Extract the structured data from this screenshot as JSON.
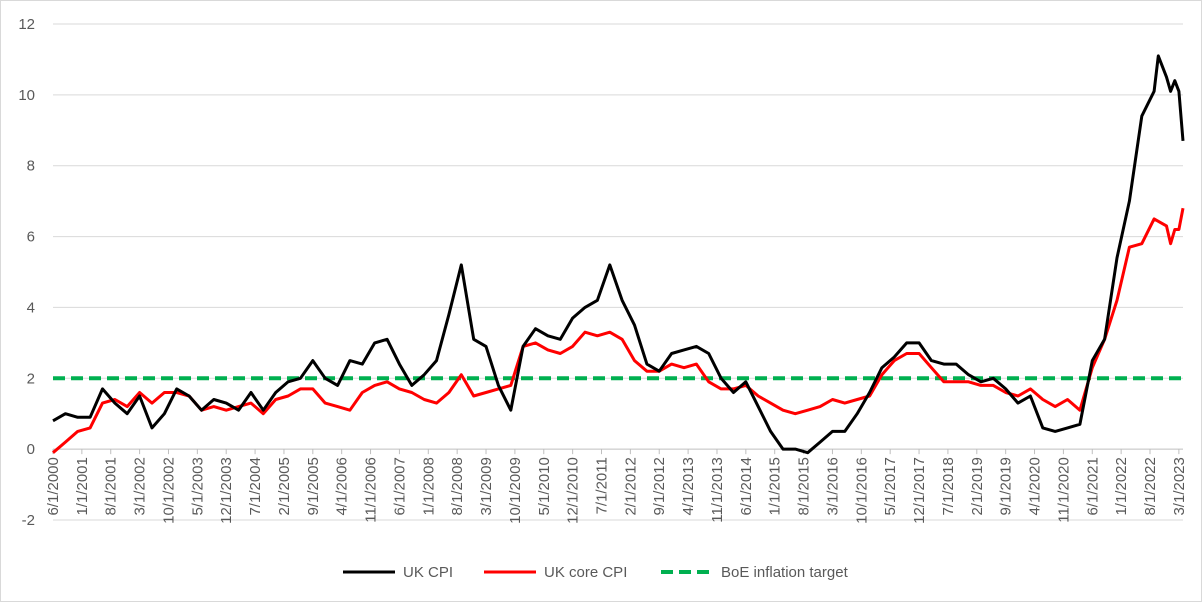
{
  "chart_data": {
    "type": "line",
    "title": "",
    "xlabel": "",
    "ylabel": "",
    "ylim": [
      -2,
      12
    ],
    "yticks": [
      -2,
      0,
      2,
      4,
      6,
      8,
      10,
      12
    ],
    "grid": "horizontal",
    "legend_position": "bottom",
    "x_tick_labels": [
      "6/1/2000",
      "1/1/2001",
      "8/1/2001",
      "3/1/2002",
      "10/1/2002",
      "5/1/2003",
      "12/1/2003",
      "7/1/2004",
      "2/1/2005",
      "9/1/2005",
      "4/1/2006",
      "11/1/2006",
      "6/1/2007",
      "1/1/2008",
      "8/1/2008",
      "3/1/2009",
      "10/1/2009",
      "5/1/2010",
      "12/1/2010",
      "7/1/2011",
      "2/1/2012",
      "9/1/2012",
      "4/1/2013",
      "11/1/2013",
      "6/1/2014",
      "1/1/2015",
      "8/1/2015",
      "3/1/2016",
      "10/1/2016",
      "5/1/2017",
      "12/1/2017",
      "7/1/2018",
      "2/1/2019",
      "9/1/2019",
      "4/1/2020",
      "11/1/2020",
      "6/1/2021",
      "1/1/2022",
      "8/1/2022",
      "3/1/2023"
    ],
    "x_start": "6/1/2000",
    "series": [
      {
        "name": "UK CPI",
        "color": "#000000",
        "style": "solid",
        "points": [
          [
            "6/1/2000",
            0.8
          ],
          [
            "9/1/2000",
            1.0
          ],
          [
            "12/1/2000",
            0.9
          ],
          [
            "3/1/2001",
            0.9
          ],
          [
            "6/1/2001",
            1.7
          ],
          [
            "9/1/2001",
            1.3
          ],
          [
            "12/1/2001",
            1.0
          ],
          [
            "3/1/2002",
            1.5
          ],
          [
            "6/1/2002",
            0.6
          ],
          [
            "9/1/2002",
            1.0
          ],
          [
            "12/1/2002",
            1.7
          ],
          [
            "3/1/2003",
            1.5
          ],
          [
            "6/1/2003",
            1.1
          ],
          [
            "9/1/2003",
            1.4
          ],
          [
            "12/1/2003",
            1.3
          ],
          [
            "3/1/2004",
            1.1
          ],
          [
            "6/1/2004",
            1.6
          ],
          [
            "9/1/2004",
            1.1
          ],
          [
            "12/1/2004",
            1.6
          ],
          [
            "3/1/2005",
            1.9
          ],
          [
            "6/1/2005",
            2.0
          ],
          [
            "9/1/2005",
            2.5
          ],
          [
            "12/1/2005",
            2.0
          ],
          [
            "3/1/2006",
            1.8
          ],
          [
            "6/1/2006",
            2.5
          ],
          [
            "9/1/2006",
            2.4
          ],
          [
            "12/1/2006",
            3.0
          ],
          [
            "3/1/2007",
            3.1
          ],
          [
            "6/1/2007",
            2.4
          ],
          [
            "9/1/2007",
            1.8
          ],
          [
            "12/1/2007",
            2.1
          ],
          [
            "3/1/2008",
            2.5
          ],
          [
            "6/1/2008",
            3.8
          ],
          [
            "9/1/2008",
            5.2
          ],
          [
            "12/1/2008",
            3.1
          ],
          [
            "3/1/2009",
            2.9
          ],
          [
            "6/1/2009",
            1.8
          ],
          [
            "9/1/2009",
            1.1
          ],
          [
            "12/1/2009",
            2.9
          ],
          [
            "3/1/2010",
            3.4
          ],
          [
            "6/1/2010",
            3.2
          ],
          [
            "9/1/2010",
            3.1
          ],
          [
            "12/1/2010",
            3.7
          ],
          [
            "3/1/2011",
            4.0
          ],
          [
            "6/1/2011",
            4.2
          ],
          [
            "9/1/2011",
            5.2
          ],
          [
            "12/1/2011",
            4.2
          ],
          [
            "3/1/2012",
            3.5
          ],
          [
            "6/1/2012",
            2.4
          ],
          [
            "9/1/2012",
            2.2
          ],
          [
            "12/1/2012",
            2.7
          ],
          [
            "3/1/2013",
            2.8
          ],
          [
            "6/1/2013",
            2.9
          ],
          [
            "9/1/2013",
            2.7
          ],
          [
            "12/1/2013",
            2.0
          ],
          [
            "3/1/2014",
            1.6
          ],
          [
            "6/1/2014",
            1.9
          ],
          [
            "9/1/2014",
            1.2
          ],
          [
            "12/1/2014",
            0.5
          ],
          [
            "3/1/2015",
            0.0
          ],
          [
            "6/1/2015",
            0.0
          ],
          [
            "9/1/2015",
            -0.1
          ],
          [
            "12/1/2015",
            0.2
          ],
          [
            "3/1/2016",
            0.5
          ],
          [
            "6/1/2016",
            0.5
          ],
          [
            "9/1/2016",
            1.0
          ],
          [
            "12/1/2016",
            1.6
          ],
          [
            "3/1/2017",
            2.3
          ],
          [
            "6/1/2017",
            2.6
          ],
          [
            "9/1/2017",
            3.0
          ],
          [
            "12/1/2017",
            3.0
          ],
          [
            "3/1/2018",
            2.5
          ],
          [
            "6/1/2018",
            2.4
          ],
          [
            "9/1/2018",
            2.4
          ],
          [
            "12/1/2018",
            2.1
          ],
          [
            "3/1/2019",
            1.9
          ],
          [
            "6/1/2019",
            2.0
          ],
          [
            "9/1/2019",
            1.7
          ],
          [
            "12/1/2019",
            1.3
          ],
          [
            "3/1/2020",
            1.5
          ],
          [
            "6/1/2020",
            0.6
          ],
          [
            "9/1/2020",
            0.5
          ],
          [
            "12/1/2020",
            0.6
          ],
          [
            "3/1/2021",
            0.7
          ],
          [
            "6/1/2021",
            2.5
          ],
          [
            "9/1/2021",
            3.1
          ],
          [
            "12/1/2021",
            5.4
          ],
          [
            "3/1/2022",
            7.0
          ],
          [
            "6/1/2022",
            9.4
          ],
          [
            "9/1/2022",
            10.1
          ],
          [
            "10/1/2022",
            11.1
          ],
          [
            "12/1/2022",
            10.5
          ],
          [
            "1/1/2023",
            10.1
          ],
          [
            "2/1/2023",
            10.4
          ],
          [
            "3/1/2023",
            10.1
          ],
          [
            "4/1/2023",
            8.7
          ]
        ]
      },
      {
        "name": "UK core CPI",
        "color": "#ff0000",
        "style": "solid",
        "points": [
          [
            "6/1/2000",
            -0.1
          ],
          [
            "9/1/2000",
            0.2
          ],
          [
            "12/1/2000",
            0.5
          ],
          [
            "3/1/2001",
            0.6
          ],
          [
            "6/1/2001",
            1.3
          ],
          [
            "9/1/2001",
            1.4
          ],
          [
            "12/1/2001",
            1.2
          ],
          [
            "3/1/2002",
            1.6
          ],
          [
            "6/1/2002",
            1.3
          ],
          [
            "9/1/2002",
            1.6
          ],
          [
            "12/1/2002",
            1.6
          ],
          [
            "3/1/2003",
            1.5
          ],
          [
            "6/1/2003",
            1.1
          ],
          [
            "9/1/2003",
            1.2
          ],
          [
            "12/1/2003",
            1.1
          ],
          [
            "3/1/2004",
            1.2
          ],
          [
            "6/1/2004",
            1.3
          ],
          [
            "9/1/2004",
            1.0
          ],
          [
            "12/1/2004",
            1.4
          ],
          [
            "3/1/2005",
            1.5
          ],
          [
            "6/1/2005",
            1.7
          ],
          [
            "9/1/2005",
            1.7
          ],
          [
            "12/1/2005",
            1.3
          ],
          [
            "3/1/2006",
            1.2
          ],
          [
            "6/1/2006",
            1.1
          ],
          [
            "9/1/2006",
            1.6
          ],
          [
            "12/1/2006",
            1.8
          ],
          [
            "3/1/2007",
            1.9
          ],
          [
            "6/1/2007",
            1.7
          ],
          [
            "9/1/2007",
            1.6
          ],
          [
            "12/1/2007",
            1.4
          ],
          [
            "3/1/2008",
            1.3
          ],
          [
            "6/1/2008",
            1.6
          ],
          [
            "9/1/2008",
            2.1
          ],
          [
            "12/1/2008",
            1.5
          ],
          [
            "3/1/2009",
            1.6
          ],
          [
            "6/1/2009",
            1.7
          ],
          [
            "9/1/2009",
            1.8
          ],
          [
            "12/1/2009",
            2.9
          ],
          [
            "3/1/2010",
            3.0
          ],
          [
            "6/1/2010",
            2.8
          ],
          [
            "9/1/2010",
            2.7
          ],
          [
            "12/1/2010",
            2.9
          ],
          [
            "3/1/2011",
            3.3
          ],
          [
            "6/1/2011",
            3.2
          ],
          [
            "9/1/2011",
            3.3
          ],
          [
            "12/1/2011",
            3.1
          ],
          [
            "3/1/2012",
            2.5
          ],
          [
            "6/1/2012",
            2.2
          ],
          [
            "9/1/2012",
            2.2
          ],
          [
            "12/1/2012",
            2.4
          ],
          [
            "3/1/2013",
            2.3
          ],
          [
            "6/1/2013",
            2.4
          ],
          [
            "9/1/2013",
            1.9
          ],
          [
            "12/1/2013",
            1.7
          ],
          [
            "3/1/2014",
            1.7
          ],
          [
            "6/1/2014",
            1.8
          ],
          [
            "9/1/2014",
            1.5
          ],
          [
            "12/1/2014",
            1.3
          ],
          [
            "3/1/2015",
            1.1
          ],
          [
            "6/1/2015",
            1.0
          ],
          [
            "9/1/2015",
            1.1
          ],
          [
            "12/1/2015",
            1.2
          ],
          [
            "3/1/2016",
            1.4
          ],
          [
            "6/1/2016",
            1.3
          ],
          [
            "9/1/2016",
            1.4
          ],
          [
            "12/1/2016",
            1.5
          ],
          [
            "3/1/2017",
            2.1
          ],
          [
            "6/1/2017",
            2.5
          ],
          [
            "9/1/2017",
            2.7
          ],
          [
            "12/1/2017",
            2.7
          ],
          [
            "3/1/2018",
            2.3
          ],
          [
            "6/1/2018",
            1.9
          ],
          [
            "9/1/2018",
            1.9
          ],
          [
            "12/1/2018",
            1.9
          ],
          [
            "3/1/2019",
            1.8
          ],
          [
            "6/1/2019",
            1.8
          ],
          [
            "9/1/2019",
            1.6
          ],
          [
            "12/1/2019",
            1.5
          ],
          [
            "3/1/2020",
            1.7
          ],
          [
            "6/1/2020",
            1.4
          ],
          [
            "9/1/2020",
            1.2
          ],
          [
            "12/1/2020",
            1.4
          ],
          [
            "3/1/2021",
            1.1
          ],
          [
            "6/1/2021",
            2.3
          ],
          [
            "9/1/2021",
            3.1
          ],
          [
            "12/1/2021",
            4.2
          ],
          [
            "3/1/2022",
            5.7
          ],
          [
            "6/1/2022",
            5.8
          ],
          [
            "9/1/2022",
            6.5
          ],
          [
            "12/1/2022",
            6.3
          ],
          [
            "1/1/2023",
            5.8
          ],
          [
            "2/1/2023",
            6.2
          ],
          [
            "3/1/2023",
            6.2
          ],
          [
            "4/1/2023",
            6.8
          ]
        ]
      },
      {
        "name": "BoE inflation target",
        "color": "#00b050",
        "style": "dashed",
        "points": [
          [
            "6/1/2000",
            2
          ],
          [
            "4/1/2023",
            2
          ]
        ]
      }
    ]
  }
}
